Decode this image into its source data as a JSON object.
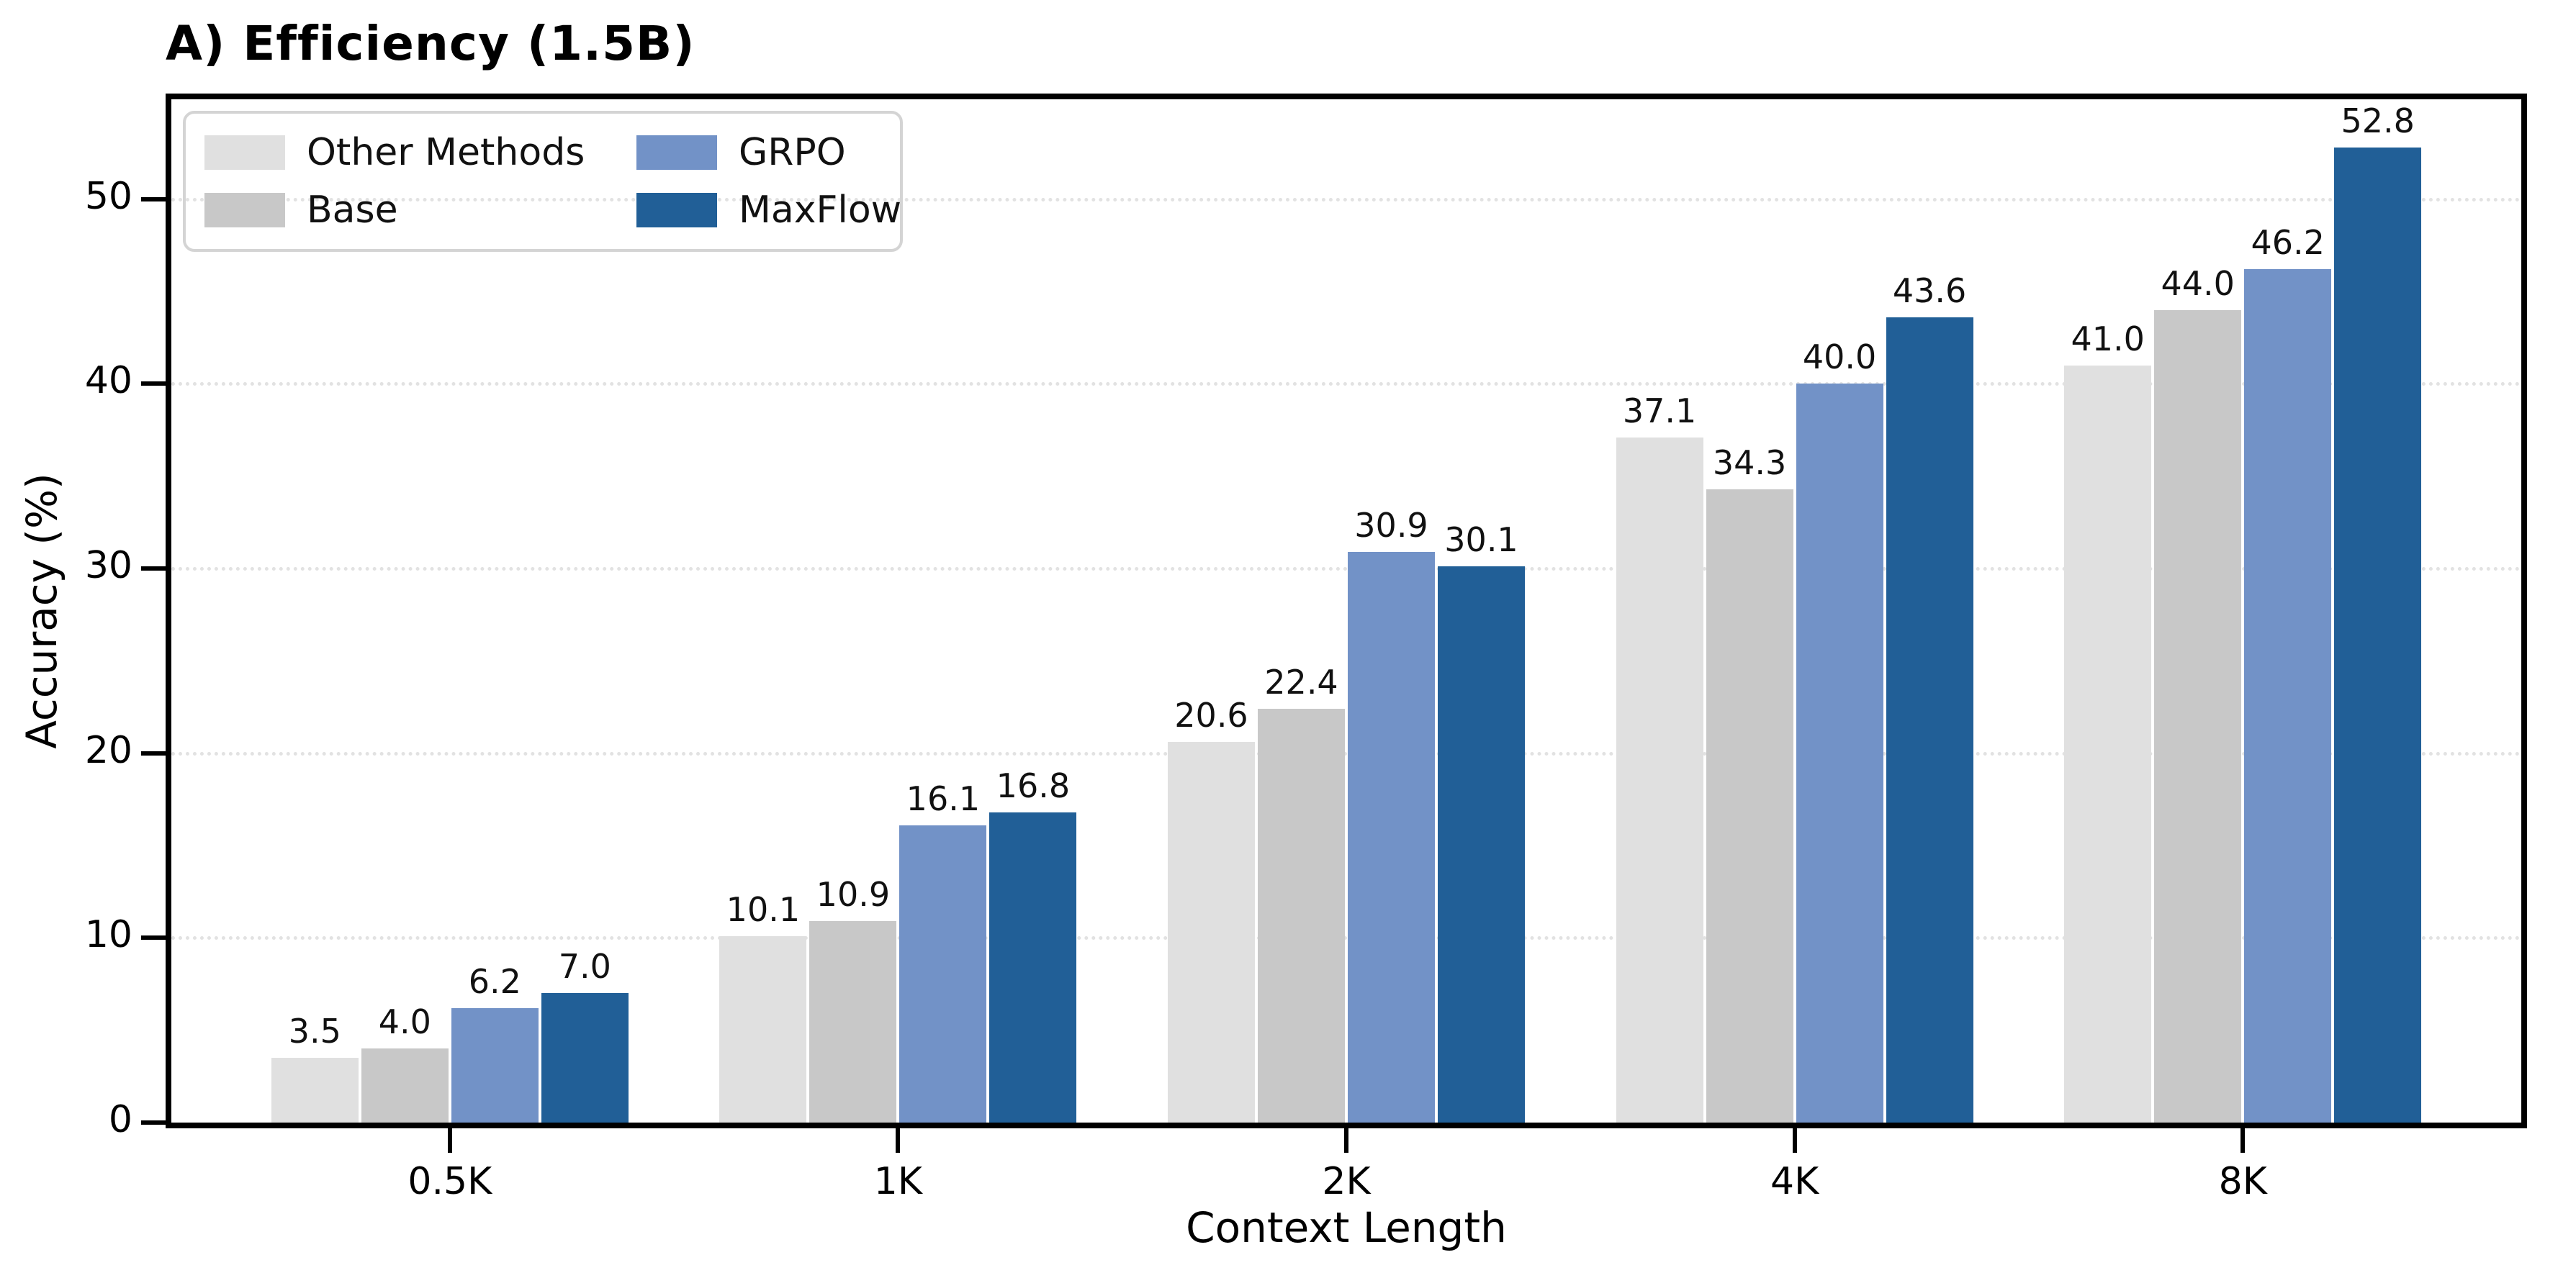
{
  "chart_data": {
    "type": "bar",
    "title": "A) Efficiency (1.5B)",
    "xlabel": "Context Length",
    "ylabel": "Accuracy (%)",
    "categories": [
      "0.5K",
      "1K",
      "2K",
      "4K",
      "8K"
    ],
    "series": [
      {
        "name": "Other Methods",
        "color": "#e0e0e0",
        "values": [
          3.5,
          10.1,
          20.6,
          37.1,
          41.0
        ]
      },
      {
        "name": "Base",
        "color": "#c8c8c8",
        "values": [
          4.0,
          10.9,
          22.4,
          34.3,
          44.0
        ]
      },
      {
        "name": "GRPO",
        "color": "#7292c7",
        "values": [
          6.2,
          16.1,
          30.9,
          40.0,
          46.2
        ]
      },
      {
        "name": "MaxFlow",
        "color": "#215f97",
        "values": [
          7.0,
          16.8,
          30.1,
          43.6,
          52.8
        ]
      }
    ],
    "value_label_format": "one_decimal",
    "yticks": [
      0,
      10,
      20,
      30,
      40,
      50
    ],
    "ylim": [
      0,
      55.4
    ],
    "grid": "horizontal-dotted",
    "legend_position": "upper-left",
    "bar_edge_color": "#ffffff"
  }
}
